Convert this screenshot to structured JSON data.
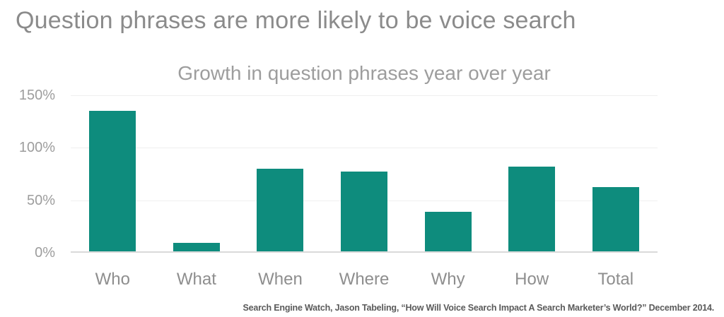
{
  "page": {
    "title": "Question phrases are more likely to be voice search",
    "source_citation": "Search Engine Watch, Jason Tabeling, “How Will Voice Search Impact A Search Marketer’s World?” December 2014."
  },
  "chart_data": {
    "type": "bar",
    "title": "Growth in question phrases year over year",
    "categories": [
      "Who",
      "What",
      "When",
      "Where",
      "Why",
      "How",
      "Total"
    ],
    "values": [
      134,
      8,
      79,
      76,
      38,
      81,
      61
    ],
    "unit": "%",
    "xlabel": "",
    "ylabel": "",
    "ylim": [
      0,
      150
    ],
    "ytick_values": [
      0,
      50,
      100,
      150
    ],
    "ytick_labels": [
      "0%",
      "50%",
      "100%",
      "150%"
    ],
    "grid": true,
    "legend": "none",
    "bar_color": "#0e8c7d",
    "gridline_color": "#efefef",
    "axis_line_color": "#d9d9d9",
    "title_color": "#8b8b8b",
    "chart_title_color": "#9d9d9d",
    "tick_label_color": "#9d9d9d",
    "category_label_color": "#8e8e8e",
    "source_text_color": "#5a5a5a",
    "background_color": "#ffffff"
  }
}
